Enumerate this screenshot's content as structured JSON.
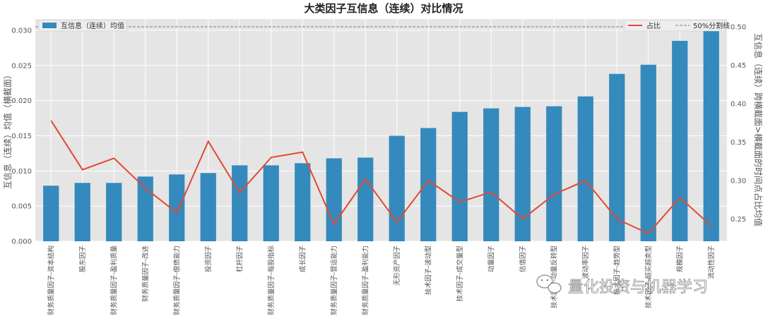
{
  "chart_data": {
    "type": "bar+line",
    "title": "大类因子互信息（连续）对比情况",
    "ylabel": "互信息（连续）均值（横截面）",
    "ylabel_right": "互信息（连续）跨横截面>横截面的时间点占比均值",
    "ylim": [
      0,
      0.0316
    ],
    "ylim_right": [
      0.221,
      0.51
    ],
    "yticks": [
      "0.000",
      "0.005",
      "0.010",
      "0.015",
      "0.020",
      "0.025",
      "0.030"
    ],
    "yticks_right": [
      "0.25",
      "0.30",
      "0.35",
      "0.40",
      "0.45",
      "0.50"
    ],
    "grid": true,
    "categories": [
      "财务质量因子-资本结构",
      "股东因子",
      "财务质量因子-盈利质量",
      "财务质量因子-改进",
      "财务质量因子-偿债能力",
      "投资因子",
      "杠杆因子",
      "财务质量因子-每股指标",
      "成长因子",
      "财务质量因子-营运能力",
      "财务质量因子-盈利能力",
      "无形资产因子",
      "技术因子-波动型",
      "技术因子-成交量型",
      "动量因子",
      "估值因子",
      "技术因子-动量反转型",
      "波动率因子",
      "技术因子-趋势型",
      "技术因子-超买超卖型",
      "规模因子",
      "流动性因子"
    ],
    "series": [
      {
        "name": "互信息（连续）均值",
        "kind": "bar",
        "color": "#348abd",
        "values": [
          0.0079,
          0.0083,
          0.0083,
          0.0092,
          0.0095,
          0.0097,
          0.0108,
          0.0108,
          0.0111,
          0.0118,
          0.0119,
          0.015,
          0.0161,
          0.0184,
          0.0189,
          0.0191,
          0.0192,
          0.0206,
          0.0238,
          0.0251,
          0.0285,
          0.03
        ]
      },
      {
        "name": "占比",
        "kind": "line",
        "axis": "right",
        "color": "#e24a33",
        "values": [
          0.378,
          0.314,
          0.329,
          0.29,
          0.258,
          0.351,
          0.284,
          0.33,
          0.337,
          0.243,
          0.302,
          0.246,
          0.3,
          0.272,
          0.285,
          0.25,
          0.282,
          0.3,
          0.25,
          0.231,
          0.278,
          0.241
        ]
      },
      {
        "name": "50%分割线",
        "kind": "hline",
        "axis": "right",
        "color": "#7f7f7f",
        "value": 0.5
      }
    ],
    "legend": [
      "top-left",
      "top-right"
    ]
  },
  "watermark": {
    "icon": "wechat-icon",
    "text": "量化投资与机器学习"
  }
}
